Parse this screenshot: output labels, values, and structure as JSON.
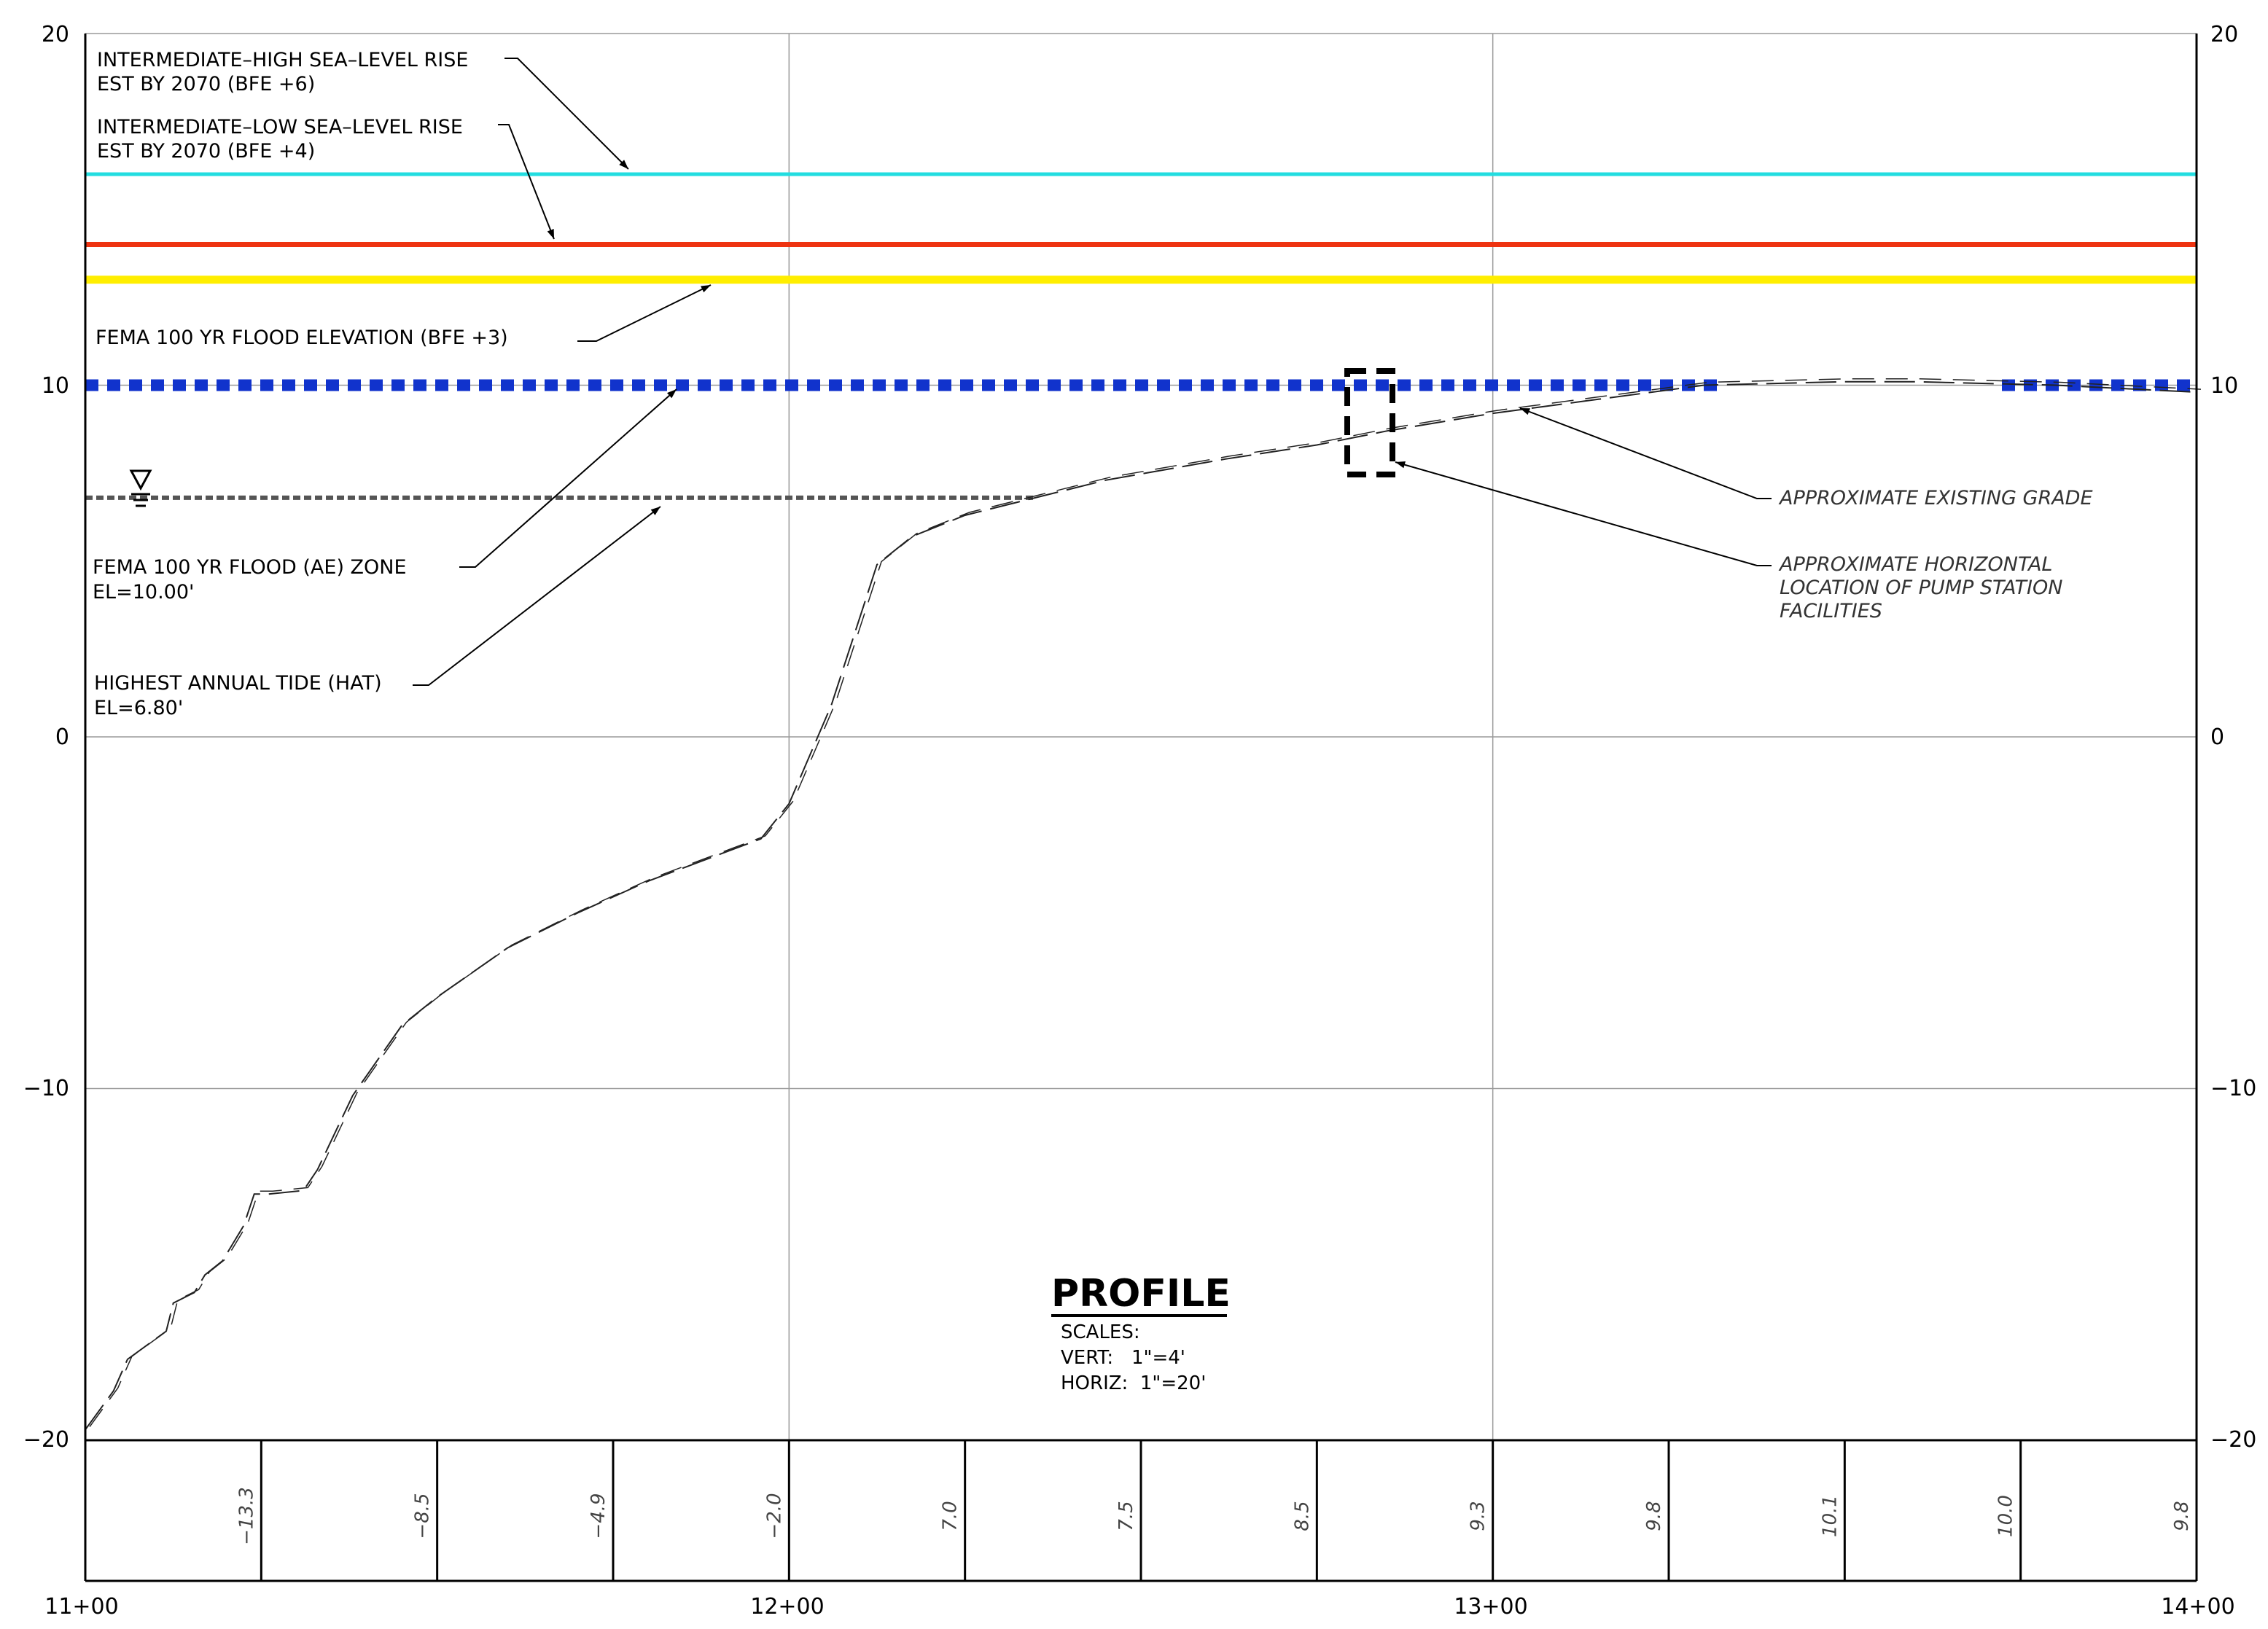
{
  "chart_data": {
    "type": "line",
    "y_axis_ticks": [
      "20",
      "10",
      "0",
      "−10",
      "−20"
    ],
    "x_axis_ticks": [
      "11+00",
      "12+00",
      "13+00",
      "14+00"
    ],
    "ylim": [
      -24,
      20
    ],
    "xlim": [
      1100,
      1400
    ],
    "grid": true,
    "reference_lines": [
      {
        "label": "INTERMEDIATE–HIGH SEA–LEVEL RISE",
        "label2": "EST BY 2070 (BFE +6)",
        "elevation": 16,
        "color": "#22dde0"
      },
      {
        "label": "INTERMEDIATE–LOW SEA–LEVEL RISE",
        "label2": "EST BY 2070 (BFE +4)",
        "elevation": 14,
        "color": "#ee3311"
      },
      {
        "label": "FEMA 100 YR FLOOD ELEVATION (BFE +3)",
        "label2": "",
        "elevation": 13,
        "color": "#ffee00"
      },
      {
        "label": "FEMA 100 YR FLOOD (AE) ZONE",
        "label2": "EL=10.00'",
        "elevation": 10,
        "color": "#1133cc"
      },
      {
        "label": "HIGHEST ANNUAL TIDE (HAT)",
        "label2": "EL=6.80'",
        "elevation": 6.8,
        "color": "#555555"
      }
    ],
    "existing_grade": {
      "x": [
        1100,
        1104,
        1106,
        1111.5,
        1112.5,
        1115.5,
        1117,
        1119.5,
        1122.5,
        1124,
        1126,
        1131,
        1133,
        1138,
        1145,
        1150,
        1160,
        1170,
        1180,
        1196,
        1200,
        1206,
        1212.5,
        1217.5,
        1225,
        1235,
        1245,
        1262,
        1275,
        1285,
        1300,
        1315,
        1330,
        1350,
        1360,
        1380,
        1400
      ],
      "y": [
        -19.7,
        -18.6,
        -17.7,
        -16.9,
        -16.1,
        -15.8,
        -15.3,
        -14.9,
        -13.9,
        -13.0,
        -13.0,
        -12.9,
        -12.3,
        -10.2,
        -8.2,
        -7.4,
        -6.0,
        -5.0,
        -4.1,
        -2.9,
        -1.9,
        0.9,
        4.9,
        5.7,
        6.3,
        6.8,
        7.3,
        7.9,
        8.3,
        8.7,
        9.2,
        9.6,
        10.0,
        10.1,
        10.1,
        10.0,
        9.8
      ]
    },
    "grade_values": [
      "−13.3",
      "−8.5",
      "−4.9",
      "−2.0",
      "7.0",
      "7.5",
      "8.5",
      "9.3",
      "9.8",
      "10.1",
      "10.0",
      "9.8"
    ]
  },
  "annotations": {
    "existing_grade": "APPROXIMATE EXISTING GRADE",
    "pump_line1": "APPROXIMATE HORIZONTAL",
    "pump_line2": "LOCATION OF PUMP STATION",
    "pump_line3": "FACILITIES"
  },
  "title_block": {
    "title": "PROFILE",
    "scales": "SCALES:",
    "vert": "VERT:   1\"=4'",
    "horiz": "HORIZ:  1\"=20'"
  },
  "colors": {
    "sea_high": "#22dde0",
    "sea_low": "#ee3311",
    "fema_bfe": "#ffee00",
    "ae_zone": "#1133cc",
    "hat": "#555555",
    "grade": "#222222",
    "grid": "#9a9a9a"
  },
  "symbols": {
    "water_surface": "water-level-triangle-icon"
  }
}
